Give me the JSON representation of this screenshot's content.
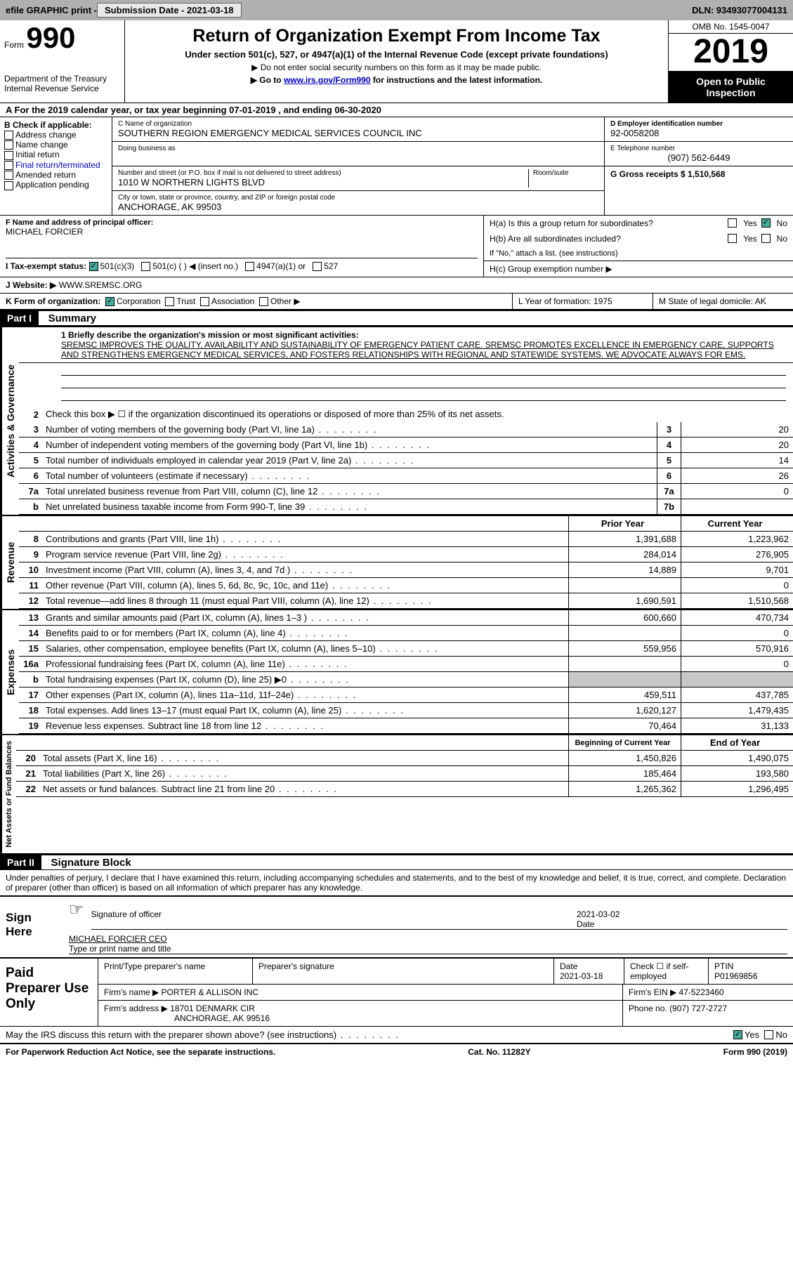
{
  "top": {
    "efile": "efile GRAPHIC print -",
    "sub_date_label": "Submission Date - 2021-03-18",
    "dln": "DLN: 93493077004131"
  },
  "header": {
    "form_label": "Form",
    "form_num": "990",
    "dept1": "Department of the Treasury",
    "dept2": "Internal Revenue Service",
    "title": "Return of Organization Exempt From Income Tax",
    "subtitle": "Under section 501(c), 527, or 4947(a)(1) of the Internal Revenue Code (except private foundations)",
    "note1": "▶ Do not enter social security numbers on this form as it may be made public.",
    "note2_pre": "▶ Go to ",
    "note2_link": "www.irs.gov/Form990",
    "note2_post": " for instructions and the latest information.",
    "omb": "OMB No. 1545-0047",
    "year": "2019",
    "inspect": "Open to Public Inspection"
  },
  "period": "A For the 2019 calendar year, or tax year beginning 07-01-2019   , and ending 06-30-2020",
  "box_b": {
    "label": "B Check if applicable:",
    "items": [
      "Address change",
      "Name change",
      "Initial return",
      "Final return/terminated",
      "Amended return",
      "Application pending"
    ]
  },
  "box_c": {
    "name_label": "C Name of organization",
    "name": "SOUTHERN REGION EMERGENCY MEDICAL SERVICES COUNCIL INC",
    "dba_label": "Doing business as",
    "addr_label": "Number and street (or P.O. box if mail is not delivered to street address)",
    "room_label": "Room/suite",
    "addr": "1010 W NORTHERN LIGHTS BLVD",
    "city_label": "City or town, state or province, country, and ZIP or foreign postal code",
    "city": "ANCHORAGE, AK  99503"
  },
  "box_d": {
    "label": "D Employer identification number",
    "val": "92-0058208"
  },
  "box_e": {
    "label": "E Telephone number",
    "val": "(907) 562-6449"
  },
  "box_g": {
    "label": "G Gross receipts $ 1,510,568"
  },
  "box_f": {
    "label": "F Name and address of principal officer:",
    "name": "MICHAEL FORCIER"
  },
  "box_h": {
    "a": "H(a)  Is this a group return for subordinates?",
    "b": "H(b)  Are all subordinates included?",
    "b_note": "If \"No,\" attach a list. (see instructions)",
    "c": "H(c)  Group exemption number ▶",
    "yes": "Yes",
    "no": "No"
  },
  "box_i": {
    "label": "I   Tax-exempt status:",
    "opts": [
      "501(c)(3)",
      "501(c) (  ) ◀ (insert no.)",
      "4947(a)(1) or",
      "527"
    ]
  },
  "box_j": {
    "label": "J   Website: ▶",
    "val": "WWW.SREMSC.ORG"
  },
  "box_k": {
    "label": "K Form of organization:",
    "opts": [
      "Corporation",
      "Trust",
      "Association",
      "Other ▶"
    ]
  },
  "box_l": "L Year of formation: 1975",
  "box_m": "M State of legal domicile: AK",
  "part1": {
    "hdr": "Part I",
    "title": "Summary"
  },
  "line1": {
    "label": "1  Briefly describe the organization's mission or most significant activities:",
    "text": "SREMSC IMPROVES THE QUALITY, AVAILABILITY AND SUSTAINABILITY OF EMERGENCY PATIENT CARE. SREMSC PROMOTES EXCELLENCE IN EMERGENCY CARE, SUPPORTS AND STRENGTHENS EMERGENCY MEDICAL SERVICES, AND FOSTERS RELATIONSHIPS WITH REGIONAL AND STATEWIDE SYSTEMS. WE ADVOCATE ALWAYS FOR EMS."
  },
  "line2": "Check this box ▶ ☐  if the organization discontinued its operations or disposed of more than 25% of its net assets.",
  "gov_lines": [
    {
      "n": "3",
      "d": "Number of voting members of the governing body (Part VI, line 1a)",
      "b": "3",
      "v": "20"
    },
    {
      "n": "4",
      "d": "Number of independent voting members of the governing body (Part VI, line 1b)",
      "b": "4",
      "v": "20"
    },
    {
      "n": "5",
      "d": "Total number of individuals employed in calendar year 2019 (Part V, line 2a)",
      "b": "5",
      "v": "14"
    },
    {
      "n": "6",
      "d": "Total number of volunteers (estimate if necessary)",
      "b": "6",
      "v": "26"
    },
    {
      "n": "7a",
      "d": "Total unrelated business revenue from Part VIII, column (C), line 12",
      "b": "7a",
      "v": "0"
    },
    {
      "n": "b",
      "d": "Net unrelated business taxable income from Form 990-T, line 39",
      "b": "7b",
      "v": ""
    }
  ],
  "col_hdrs": {
    "py": "Prior Year",
    "cy": "Current Year"
  },
  "rev_lines": [
    {
      "n": "8",
      "d": "Contributions and grants (Part VIII, line 1h)",
      "py": "1,391,688",
      "cy": "1,223,962"
    },
    {
      "n": "9",
      "d": "Program service revenue (Part VIII, line 2g)",
      "py": "284,014",
      "cy": "276,905"
    },
    {
      "n": "10",
      "d": "Investment income (Part VIII, column (A), lines 3, 4, and 7d )",
      "py": "14,889",
      "cy": "9,701"
    },
    {
      "n": "11",
      "d": "Other revenue (Part VIII, column (A), lines 5, 6d, 8c, 9c, 10c, and 11e)",
      "py": "",
      "cy": "0"
    },
    {
      "n": "12",
      "d": "Total revenue—add lines 8 through 11 (must equal Part VIII, column (A), line 12)",
      "py": "1,690,591",
      "cy": "1,510,568"
    }
  ],
  "exp_lines": [
    {
      "n": "13",
      "d": "Grants and similar amounts paid (Part IX, column (A), lines 1–3 )",
      "py": "600,660",
      "cy": "470,734"
    },
    {
      "n": "14",
      "d": "Benefits paid to or for members (Part IX, column (A), line 4)",
      "py": "",
      "cy": "0"
    },
    {
      "n": "15",
      "d": "Salaries, other compensation, employee benefits (Part IX, column (A), lines 5–10)",
      "py": "559,956",
      "cy": "570,916"
    },
    {
      "n": "16a",
      "d": "Professional fundraising fees (Part IX, column (A), line 11e)",
      "py": "",
      "cy": "0"
    },
    {
      "n": "b",
      "d": "Total fundraising expenses (Part IX, column (D), line 25) ▶0",
      "py": "shade",
      "cy": "shade"
    },
    {
      "n": "17",
      "d": "Other expenses (Part IX, column (A), lines 11a–11d, 11f–24e)",
      "py": "459,511",
      "cy": "437,785"
    },
    {
      "n": "18",
      "d": "Total expenses. Add lines 13–17 (must equal Part IX, column (A), line 25)",
      "py": "1,620,127",
      "cy": "1,479,435"
    },
    {
      "n": "19",
      "d": "Revenue less expenses. Subtract line 18 from line 12",
      "py": "70,464",
      "cy": "31,133"
    }
  ],
  "bal_hdrs": {
    "b": "Beginning of Current Year",
    "e": "End of Year"
  },
  "bal_lines": [
    {
      "n": "20",
      "d": "Total assets (Part X, line 16)",
      "py": "1,450,826",
      "cy": "1,490,075"
    },
    {
      "n": "21",
      "d": "Total liabilities (Part X, line 26)",
      "py": "185,464",
      "cy": "193,580"
    },
    {
      "n": "22",
      "d": "Net assets or fund balances. Subtract line 21 from line 20",
      "py": "1,265,362",
      "cy": "1,296,495"
    }
  ],
  "vtabs": {
    "gov": "Activities & Governance",
    "rev": "Revenue",
    "exp": "Expenses",
    "bal": "Net Assets or Fund Balances"
  },
  "part2": {
    "hdr": "Part II",
    "title": "Signature Block"
  },
  "sig": {
    "decl": "Under penalties of perjury, I declare that I have examined this return, including accompanying schedules and statements, and to the best of my knowledge and belief, it is true, correct, and complete. Declaration of preparer (other than officer) is based on all information of which preparer has any knowledge.",
    "here": "Sign Here",
    "officer_sig": "Signature of officer",
    "date": "Date",
    "date_val": "2021-03-02",
    "name": "MICHAEL FORCIER CEO",
    "name_label": "Type or print name and title"
  },
  "paid": {
    "label": "Paid Preparer Use Only",
    "h1": "Print/Type preparer's name",
    "h2": "Preparer's signature",
    "h3": "Date",
    "h3v": "2021-03-18",
    "h4": "Check ☐ if self-employed",
    "h5": "PTIN",
    "h5v": "P01969856",
    "firm_label": "Firm's name   ▶",
    "firm": "PORTER & ALLISON INC",
    "ein_label": "Firm's EIN ▶",
    "ein": "47-5223460",
    "addr_label": "Firm's address ▶",
    "addr": "18701 DENMARK CIR",
    "addr2": "ANCHORAGE, AK  99516",
    "phone_label": "Phone no.",
    "phone": "(907) 727-2727"
  },
  "discuss": "May the IRS discuss this return with the preparer shown above? (see instructions)",
  "footer": {
    "left": "For Paperwork Reduction Act Notice, see the separate instructions.",
    "mid": "Cat. No. 11282Y",
    "right": "Form 990 (2019)"
  }
}
